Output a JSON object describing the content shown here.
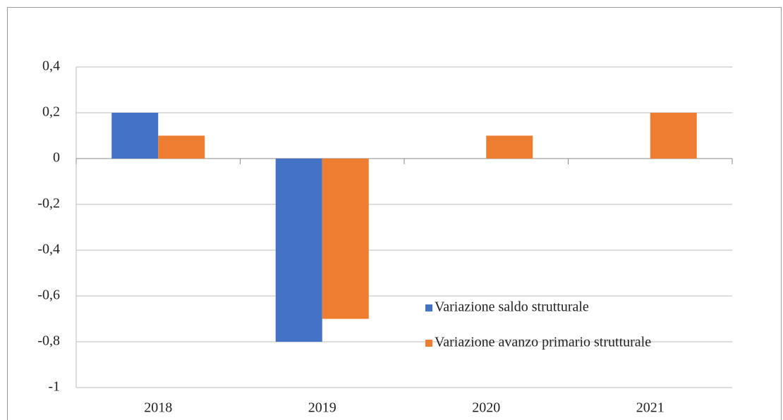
{
  "chart_data": {
    "type": "bar",
    "categories": [
      "2018",
      "2019",
      "2020",
      "2021"
    ],
    "series": [
      {
        "name": "Variazione saldo strutturale",
        "color": "#4472c4",
        "values": [
          0.2,
          -0.8,
          0,
          0
        ]
      },
      {
        "name": "Variazione avanzo primario strutturale",
        "color": "#ed7d31",
        "values": [
          0.1,
          -0.7,
          0.1,
          0.2
        ]
      }
    ],
    "ylim": [
      -1,
      0.4
    ],
    "yticks": [
      {
        "value": 0.4,
        "label": "0,4"
      },
      {
        "value": 0.2,
        "label": "0,2"
      },
      0,
      {
        "value": -0.2,
        "label": "-0,2"
      },
      {
        "value": -0.4,
        "label": "-0,4"
      },
      {
        "value": -0.6,
        "label": "-0,6"
      },
      {
        "value": -0.8,
        "label": "-0,8"
      },
      -1
    ],
    "grid": true,
    "legend": "lower right"
  }
}
